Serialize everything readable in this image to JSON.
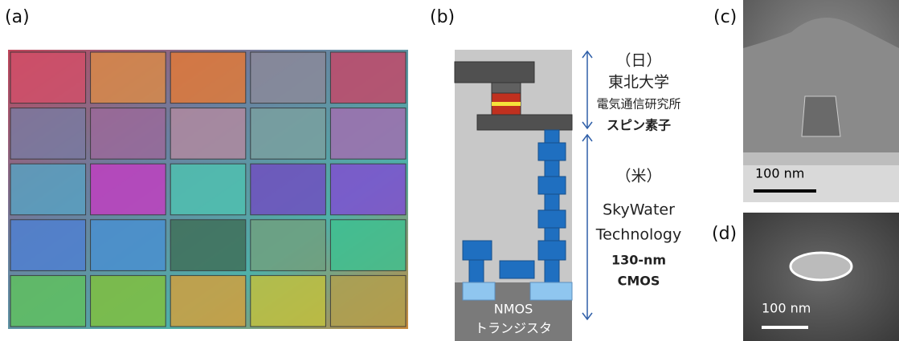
{
  "panels": {
    "a": "(a)",
    "b": "(b)",
    "c": "(c)",
    "d": "(d)"
  },
  "diagram": {
    "country_jp": "（日）",
    "org_1": "東北大学",
    "org_2": "電気通信研究所",
    "spin": "スピン素子",
    "country_us": "（米）",
    "company_1": "SkyWater",
    "company_2": "Technology",
    "process_1": "130-nm",
    "process_2": "CMOS",
    "transistor_1": "NMOS",
    "transistor_2": "トランジスタ"
  },
  "scale_bars": {
    "c": "100 nm",
    "d": "100 nm"
  }
}
